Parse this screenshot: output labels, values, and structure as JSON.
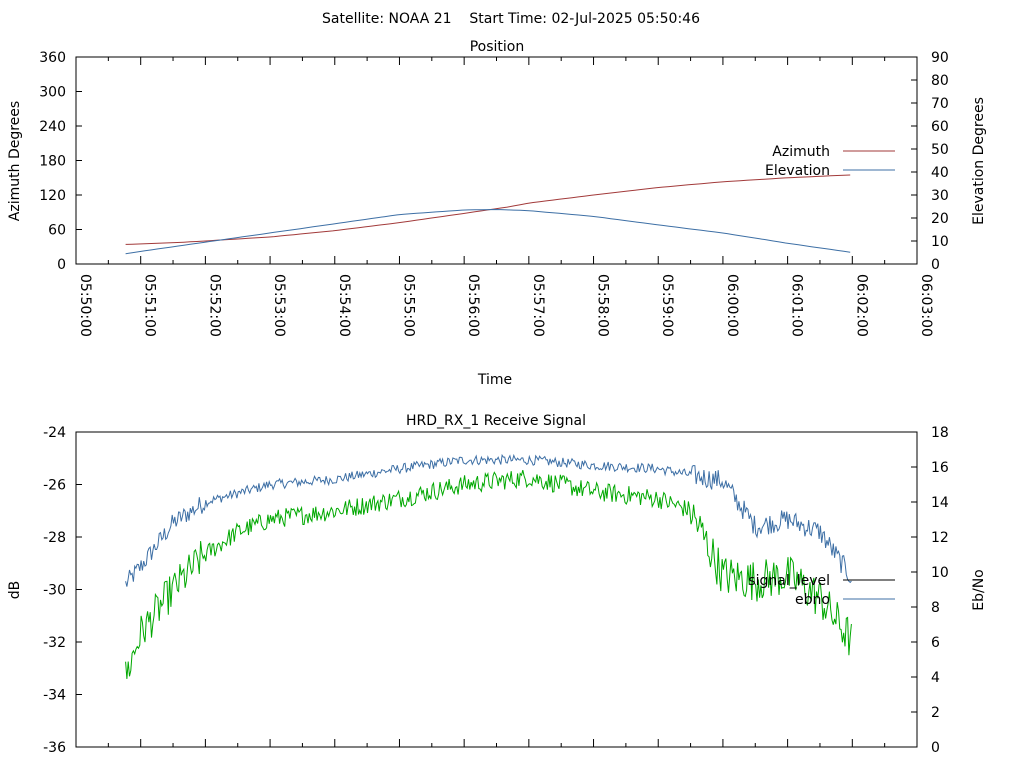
{
  "header": {
    "title": "Satellite: NOAA 21    Start Time: 02-Jul-2025 05:50:46"
  },
  "colors": {
    "azimuth": "#a23a3a",
    "elevation": "#3d6fa5",
    "ebno": "#00a800",
    "signal_level": "#000000"
  },
  "chart_data": [
    {
      "type": "line",
      "title": "Position",
      "xlabel": "Time",
      "ylabel": "Azimuth Degrees",
      "y2label": "Elevation Degrees",
      "xlim": [
        "05:50:00",
        "06:03:00"
      ],
      "ylim": [
        0,
        360
      ],
      "y2lim": [
        0,
        90
      ],
      "x_ticks": [
        "05:50:00",
        "05:51:00",
        "05:52:00",
        "05:53:00",
        "05:54:00",
        "05:55:00",
        "05:56:00",
        "05:57:00",
        "05:58:00",
        "05:59:00",
        "06:00:00",
        "06:01:00",
        "06:02:00",
        "06:03:00"
      ],
      "y_ticks": [
        "0",
        "60",
        "120",
        "180",
        "240",
        "300",
        "360"
      ],
      "y2_ticks": [
        "0",
        "10",
        "20",
        "30",
        "40",
        "50",
        "60",
        "70",
        "80",
        "90"
      ],
      "legend_position": "right",
      "grid": false,
      "series": [
        {
          "name": "Azimuth",
          "axis": "y",
          "x": [
            "05:50:46",
            "05:51:30",
            "05:52:00",
            "05:53:00",
            "05:54:00",
            "05:55:00",
            "05:56:00",
            "05:56:40",
            "05:57:00",
            "05:58:00",
            "05:59:00",
            "06:00:00",
            "06:01:00",
            "06:02:00"
          ],
          "y": [
            34,
            37,
            40,
            47,
            58,
            72,
            88,
            99,
            106,
            120,
            133,
            143,
            150,
            155
          ]
        },
        {
          "name": "Elevation",
          "axis": "y2",
          "x": [
            "05:50:46",
            "05:51:30",
            "05:52:00",
            "05:53:00",
            "05:54:00",
            "05:55:00",
            "05:56:00",
            "05:56:30",
            "05:57:00",
            "05:58:00",
            "05:59:00",
            "06:00:00",
            "06:01:00",
            "06:02:00"
          ],
          "y": [
            4.5,
            7.5,
            9.5,
            13.5,
            17.5,
            21.5,
            23.5,
            23.7,
            23.2,
            20.7,
            17,
            13.5,
            9,
            5
          ]
        }
      ]
    },
    {
      "type": "line",
      "title": "HRD_RX_1 Receive Signal",
      "ylabel": "dB",
      "y2label": "Eb/No",
      "xlim": [
        "05:50:00",
        "06:03:00"
      ],
      "ylim": [
        -36,
        -24
      ],
      "y2lim": [
        0,
        18
      ],
      "y_ticks": [
        "-24",
        "-26",
        "-28",
        "-30",
        "-32",
        "-34",
        "-36"
      ],
      "y2_ticks": [
        "0",
        "2",
        "4",
        "6",
        "8",
        "10",
        "12",
        "14",
        "16",
        "18"
      ],
      "legend_position": "right",
      "grid": false,
      "series": [
        {
          "name": "signal_level",
          "axis": "y",
          "x": [],
          "y": []
        },
        {
          "name": "ebno",
          "axis": "y2",
          "x": [
            "05:50:46",
            "05:51:00",
            "05:51:30",
            "05:52:00",
            "05:53:00",
            "05:54:00",
            "05:55:00",
            "05:56:00",
            "05:57:00",
            "05:58:00",
            "05:59:00",
            "06:00:00",
            "06:00:30",
            "06:01:00",
            "06:01:30",
            "06:02:00"
          ],
          "y": [
            9.3,
            10.3,
            12.8,
            14,
            15,
            15.3,
            15.9,
            16.4,
            16.4,
            16.1,
            15.9,
            15.2,
            12.6,
            13,
            12.3,
            9.6
          ]
        },
        {
          "name": "",
          "axis": "y2",
          "color": "green",
          "x": [
            "05:50:46",
            "05:51:00",
            "05:51:30",
            "05:52:00",
            "05:52:30",
            "05:53:00",
            "05:54:00",
            "05:55:00",
            "05:56:00",
            "05:57:00",
            "05:58:00",
            "05:59:00",
            "05:59:30",
            "06:00:00",
            "06:00:30",
            "06:01:00",
            "06:01:30",
            "06:02:00"
          ],
          "y": [
            4,
            6.5,
            9,
            11,
            12.3,
            13,
            13.5,
            14.2,
            15,
            15.4,
            14.6,
            14.2,
            13.5,
            9.8,
            9.5,
            9.8,
            8.5,
            6
          ]
        }
      ]
    }
  ]
}
